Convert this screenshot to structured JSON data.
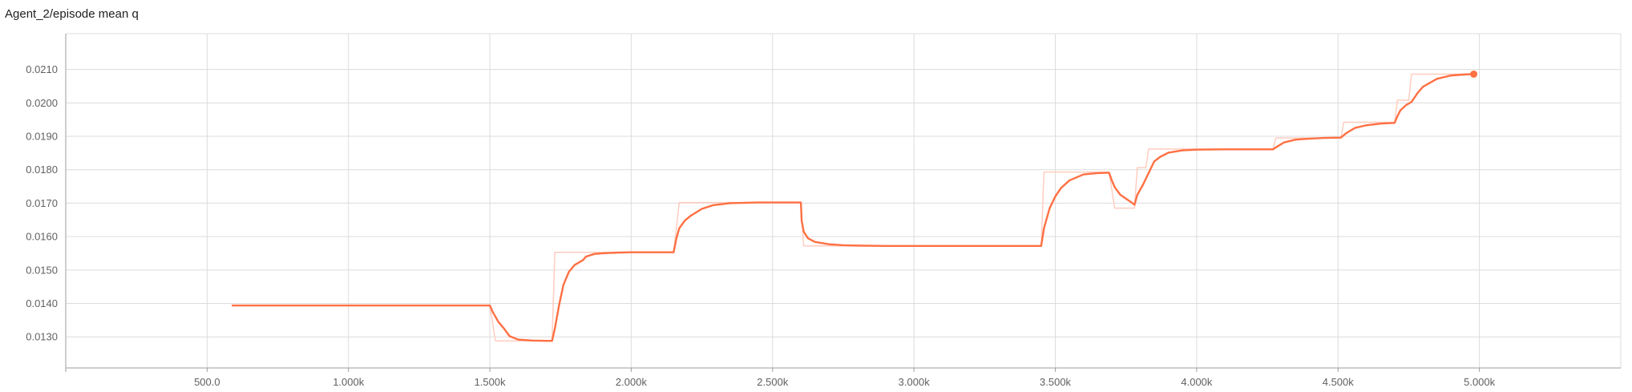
{
  "title": "Agent_2/episode mean q",
  "chart_data": {
    "type": "line",
    "title": "Agent_2/episode mean q",
    "xlabel": "",
    "ylabel": "",
    "xlim": [
      0,
      5500
    ],
    "ylim": [
      0.01207,
      0.02207
    ],
    "x_ticks": [
      500,
      1000,
      1500,
      2000,
      2500,
      3000,
      3500,
      4000,
      4500,
      5000
    ],
    "x_tick_labels": [
      "500.0",
      "1.000k",
      "1.500k",
      "2.000k",
      "2.500k",
      "3.000k",
      "3.500k",
      "4.000k",
      "4.500k",
      "5.000k"
    ],
    "y_ticks": [
      0.013,
      0.014,
      0.015,
      0.016,
      0.017,
      0.018,
      0.019,
      0.02,
      0.021
    ],
    "y_tick_labels": [
      "0.0130",
      "0.0140",
      "0.0150",
      "0.0160",
      "0.0170",
      "0.0180",
      "0.0190",
      "0.0200",
      "0.0210"
    ],
    "grid": true,
    "colors": {
      "smoothed": "#ff7043",
      "raw": "#ffcdc0",
      "grid": "#dcdcdc",
      "axis": "#9e9e9e"
    },
    "series": [
      {
        "role": "raw",
        "x": [
          590,
          1500,
          1520,
          1720,
          1730,
          2150,
          2170,
          2600,
          2610,
          3450,
          3460,
          3690,
          3710,
          3780,
          3790,
          3820,
          3830,
          4270,
          4280,
          4510,
          4520,
          4700,
          4710,
          4750,
          4760,
          4980
        ],
        "y": [
          0.01394,
          0.01394,
          0.01288,
          0.01288,
          0.01553,
          0.01553,
          0.01702,
          0.01702,
          0.01572,
          0.01572,
          0.01793,
          0.01793,
          0.01685,
          0.01685,
          0.01806,
          0.01806,
          0.01862,
          0.01862,
          0.01895,
          0.01895,
          0.01942,
          0.01942,
          0.02008,
          0.02008,
          0.02086,
          0.02086
        ]
      },
      {
        "role": "smoothed",
        "x": [
          590,
          1500,
          1510,
          1530,
          1550,
          1570,
          1600,
          1650,
          1700,
          1720,
          1730,
          1745,
          1760,
          1780,
          1800,
          1830,
          1840,
          1870,
          1900,
          1950,
          2000,
          2100,
          2150,
          2160,
          2170,
          2190,
          2210,
          2250,
          2290,
          2350,
          2450,
          2600,
          2603,
          2610,
          2625,
          2650,
          2700,
          2750,
          2800,
          2900,
          3000,
          3300,
          3450,
          3460,
          3480,
          3500,
          3520,
          3550,
          3600,
          3650,
          3690,
          3700,
          3710,
          3730,
          3770,
          3780,
          3790,
          3810,
          3830,
          3850,
          3870,
          3900,
          3950,
          4000,
          4100,
          4200,
          4270,
          4290,
          4310,
          4350,
          4400,
          4450,
          4510,
          4530,
          4560,
          4600,
          4650,
          4700,
          4710,
          4720,
          4740,
          4760,
          4780,
          4800,
          4850,
          4900,
          4950,
          4980
        ],
        "y": [
          0.01394,
          0.01394,
          0.01375,
          0.01345,
          0.01325,
          0.01302,
          0.01292,
          0.01289,
          0.01288,
          0.01288,
          0.01325,
          0.01395,
          0.01455,
          0.01495,
          0.01515,
          0.0153,
          0.0154,
          0.01548,
          0.0155,
          0.01552,
          0.01553,
          0.01553,
          0.01553,
          0.01595,
          0.01625,
          0.01648,
          0.01662,
          0.01683,
          0.01694,
          0.017,
          0.01702,
          0.01702,
          0.01647,
          0.01615,
          0.01595,
          0.01584,
          0.01577,
          0.01574,
          0.01573,
          0.01572,
          0.01572,
          0.01572,
          0.01572,
          0.01625,
          0.01685,
          0.0172,
          0.01745,
          0.01768,
          0.01786,
          0.0179,
          0.01791,
          0.01768,
          0.01748,
          0.01725,
          0.01702,
          0.01695,
          0.01725,
          0.01755,
          0.0179,
          0.01825,
          0.01838,
          0.01851,
          0.01858,
          0.0186,
          0.01861,
          0.01861,
          0.01861,
          0.01872,
          0.01882,
          0.0189,
          0.01893,
          0.01895,
          0.01896,
          0.0191,
          0.01925,
          0.01933,
          0.01938,
          0.0194,
          0.0196,
          0.01977,
          0.01993,
          0.02003,
          0.02028,
          0.02048,
          0.02072,
          0.02082,
          0.02085,
          0.02086
        ]
      }
    ]
  }
}
